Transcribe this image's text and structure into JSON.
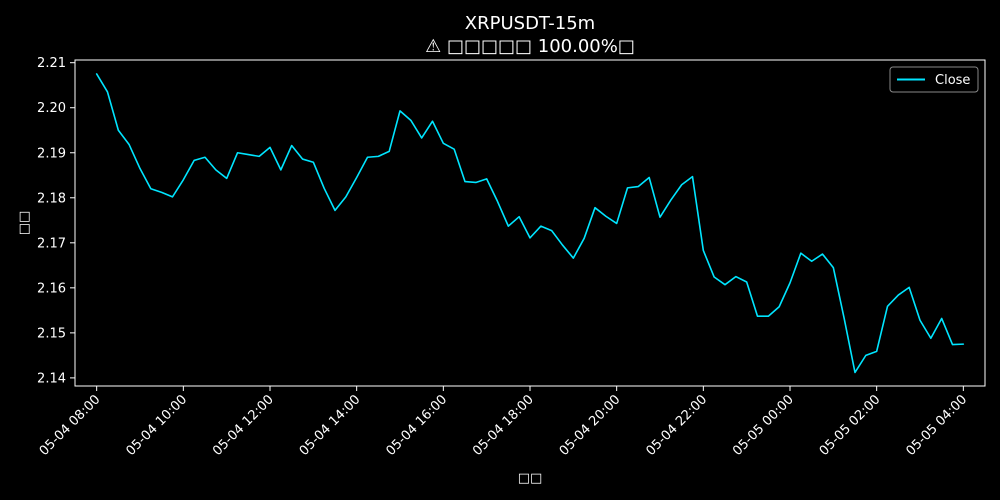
{
  "chart_data": {
    "type": "line",
    "title": "XRPUSDT-15m",
    "subtitle": "⚠ □□□□□ 100.00%□",
    "xlabel": "□□",
    "ylabel": "□□",
    "x_ticks": [
      "05-04 08:00",
      "05-04 10:00",
      "05-04 12:00",
      "05-04 14:00",
      "05-04 16:00",
      "05-04 18:00",
      "05-04 20:00",
      "05-04 22:00",
      "05-05 00:00",
      "05-05 02:00",
      "05-05 04:00"
    ],
    "y_ticks": [
      "2.14",
      "2.15",
      "2.16",
      "2.17",
      "2.18",
      "2.19",
      "2.20",
      "2.21"
    ],
    "ylim": [
      2.1382,
      2.2106
    ],
    "x_range": [
      "05-04 07:30",
      "05-05 04:30"
    ],
    "legend": {
      "position": "top-right",
      "entries": [
        "Close"
      ]
    },
    "grid": false,
    "series": [
      {
        "name": "Close",
        "color": "#00e5ff",
        "x_start": "05-04 08:00",
        "x_interval_minutes": 15,
        "values": [
          2.2075,
          2.2035,
          2.195,
          2.1918,
          2.1865,
          2.182,
          2.1812,
          2.1802,
          2.184,
          2.1883,
          2.189,
          2.1862,
          2.1843,
          2.19,
          2.1896,
          2.1892,
          2.1912,
          2.1862,
          2.1916,
          2.1886,
          2.1879,
          2.1821,
          2.1772,
          2.1802,
          2.1845,
          2.189,
          2.1892,
          2.1903,
          2.1993,
          2.1972,
          2.1933,
          2.197,
          2.1921,
          2.1908,
          2.1836,
          2.1834,
          2.1842,
          2.1792,
          2.1737,
          2.1758,
          2.1711,
          2.1737,
          2.1727,
          2.1695,
          2.1666,
          2.171,
          2.1778,
          2.1759,
          2.1743,
          2.1822,
          2.1825,
          2.1845,
          2.1757,
          2.1795,
          2.1829,
          2.1847,
          2.1683,
          2.1624,
          2.1607,
          2.1625,
          2.1613,
          2.1537,
          2.1537,
          2.1558,
          2.1611,
          2.1677,
          2.1659,
          2.1675,
          2.1645,
          2.1532,
          2.1412,
          2.145,
          2.1459,
          2.1559,
          2.1584,
          2.1601,
          2.1528,
          2.1488,
          2.1532,
          2.1474,
          2.1475
        ]
      }
    ]
  }
}
